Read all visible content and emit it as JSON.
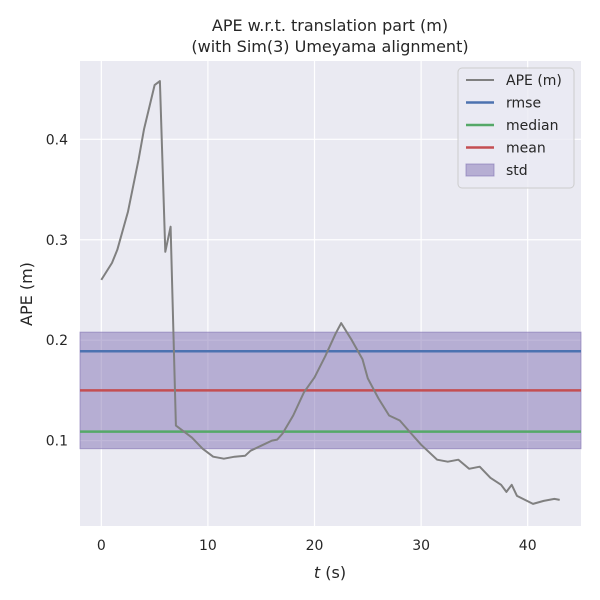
{
  "chart_data": {
    "type": "line",
    "title": "APE w.r.t. translation part (m)",
    "subtitle": "(with Sim(3) Umeyama alignment)",
    "xlabel": "t (s)",
    "xlabel_var": "t",
    "xlabel_unit": " (s)",
    "ylabel": "APE (m)",
    "xlim": [
      -2,
      45
    ],
    "ylim": [
      0.015,
      0.478
    ],
    "xticks": [
      0,
      10,
      20,
      30,
      40
    ],
    "yticks": [
      0.1,
      0.2,
      0.3,
      0.4
    ],
    "ytick_labels": [
      "0.1",
      "0.2",
      "0.3",
      "0.4"
    ],
    "grid": true,
    "legend_position": "top-right",
    "series": [
      {
        "name": "APE (m)",
        "color": "#808080",
        "x": [
          0,
          1.0,
          1.5,
          2.5,
          3.5,
          4.0,
          5.0,
          5.5,
          6.0,
          6.5,
          7.0,
          8.0,
          8.5,
          9.5,
          10.5,
          11.5,
          12.5,
          13.5,
          14.0,
          15.0,
          16.0,
          16.5,
          17.0,
          18.0,
          19.0,
          20.0,
          21.0,
          22.0,
          22.5,
          23.5,
          24.5,
          25.0,
          26.0,
          27.0,
          28.0,
          29.0,
          30.0,
          31.5,
          32.5,
          33.5,
          34.5,
          35.5,
          36.5,
          37.5,
          38.0,
          38.5,
          39.0,
          40.5,
          41.5,
          42.5,
          43.0
        ],
        "y": [
          0.26,
          0.277,
          0.29,
          0.328,
          0.38,
          0.41,
          0.454,
          0.458,
          0.288,
          0.313,
          0.115,
          0.107,
          0.103,
          0.092,
          0.084,
          0.082,
          0.084,
          0.085,
          0.09,
          0.095,
          0.1,
          0.101,
          0.107,
          0.125,
          0.148,
          0.163,
          0.184,
          0.207,
          0.217,
          0.2,
          0.181,
          0.162,
          0.142,
          0.125,
          0.12,
          0.108,
          0.096,
          0.081,
          0.079,
          0.081,
          0.072,
          0.074,
          0.063,
          0.056,
          0.049,
          0.056,
          0.045,
          0.037,
          0.04,
          0.042,
          0.041
        ]
      },
      {
        "name": "rmse",
        "color": "#4c72b0",
        "y": 0.189
      },
      {
        "name": "median",
        "color": "#55a868",
        "y": 0.109
      },
      {
        "name": "mean",
        "color": "#c44e52",
        "y": 0.15
      },
      {
        "name": "std",
        "color": "#8172b3",
        "range": [
          0.092,
          0.208
        ]
      }
    ]
  },
  "style": {
    "plot_background": "#eaeaf2",
    "grid_color": "#ffffff",
    "std_fill_opacity": 0.5
  }
}
